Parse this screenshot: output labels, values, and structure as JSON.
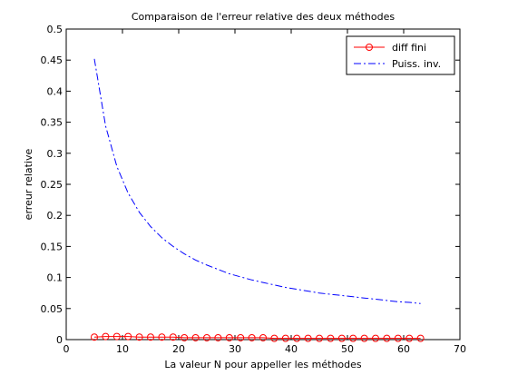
{
  "chart_data": {
    "type": "line",
    "title": "Comparaison de l'erreur relative des deux méthodes",
    "xlabel": "La valeur N pour appeller les méthodes",
    "ylabel": "erreur relative",
    "xlim": [
      0,
      70
    ],
    "ylim": [
      0,
      0.5
    ],
    "xticks": [
      0,
      10,
      20,
      30,
      40,
      50,
      60,
      70
    ],
    "xtick_labels": [
      "0",
      "10",
      "20",
      "30",
      "40",
      "50",
      "60",
      "70"
    ],
    "yticks": [
      0,
      0.05,
      0.1,
      0.15,
      0.2,
      0.25,
      0.3,
      0.35,
      0.4,
      0.45,
      0.5
    ],
    "ytick_labels": [
      "0",
      "0.05",
      "0.1",
      "0.15",
      "0.2",
      "0.25",
      "0.3",
      "0.35",
      "0.4",
      "0.45",
      "0.5"
    ],
    "grid": false,
    "legend_position": "top-right",
    "series": [
      {
        "name": "diff fini",
        "color": "#ff0000",
        "line_style": "solid",
        "marker": "circle",
        "x": [
          5,
          7,
          9,
          11,
          13,
          15,
          17,
          19,
          21,
          23,
          25,
          27,
          29,
          31,
          33,
          35,
          37,
          39,
          41,
          43,
          45,
          47,
          49,
          51,
          53,
          55,
          57,
          59,
          61,
          63
        ],
        "y": [
          0.004,
          0.005,
          0.005,
          0.005,
          0.004,
          0.004,
          0.004,
          0.004,
          0.003,
          0.003,
          0.003,
          0.003,
          0.003,
          0.003,
          0.003,
          0.003,
          0.002,
          0.002,
          0.002,
          0.002,
          0.002,
          0.002,
          0.002,
          0.002,
          0.002,
          0.002,
          0.002,
          0.002,
          0.002,
          0.002
        ]
      },
      {
        "name": "Puiss. inv.",
        "color": "#0000ff",
        "line_style": "dashdot",
        "marker": "none",
        "x": [
          5,
          7,
          9,
          11,
          13,
          15,
          17,
          19,
          21,
          23,
          25,
          27,
          29,
          31,
          33,
          35,
          37,
          39,
          41,
          43,
          45,
          47,
          49,
          51,
          53,
          55,
          57,
          59,
          61,
          63
        ],
        "y": [
          0.452,
          0.344,
          0.279,
          0.236,
          0.205,
          0.182,
          0.164,
          0.15,
          0.138,
          0.128,
          0.12,
          0.113,
          0.106,
          0.101,
          0.096,
          0.092,
          0.088,
          0.084,
          0.081,
          0.078,
          0.075,
          0.073,
          0.071,
          0.069,
          0.067,
          0.065,
          0.063,
          0.061,
          0.06,
          0.058
        ]
      }
    ]
  }
}
